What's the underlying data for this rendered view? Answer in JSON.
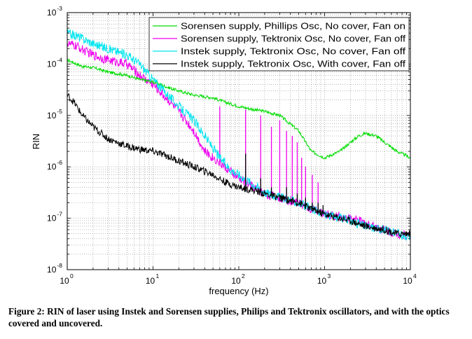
{
  "chart_data": {
    "type": "line",
    "xscale": "log",
    "yscale": "log",
    "xlim": [
      1,
      10000
    ],
    "ylim": [
      1e-08,
      0.001
    ],
    "xlabel": "frequency (Hz)",
    "ylabel": "RIN",
    "grid": "on (dotted, with minor log grid)",
    "legend_position": "top-right",
    "x_ticks": [
      {
        "value": 1,
        "base": "10",
        "exp": "0"
      },
      {
        "value": 10,
        "base": "10",
        "exp": "1"
      },
      {
        "value": 100,
        "base": "10",
        "exp": "2"
      },
      {
        "value": 1000,
        "base": "10",
        "exp": "3"
      },
      {
        "value": 10000,
        "base": "10",
        "exp": "4"
      }
    ],
    "y_ticks": [
      {
        "value": 1e-08,
        "base": "10",
        "exp": "-8"
      },
      {
        "value": 1e-07,
        "base": "10",
        "exp": "-7"
      },
      {
        "value": 1e-06,
        "base": "10",
        "exp": "-6"
      },
      {
        "value": 1e-05,
        "base": "10",
        "exp": "-5"
      },
      {
        "value": 0.0001,
        "base": "10",
        "exp": "-4"
      },
      {
        "value": 0.001,
        "base": "10",
        "exp": "-3"
      }
    ],
    "series": [
      {
        "name": "Sorensen supply, Phillips Osc, No cover, Fan on",
        "color": "#00dd00",
        "x": [
          1,
          1.5,
          2,
          3,
          5,
          7,
          10,
          15,
          20,
          30,
          50,
          70,
          100,
          150,
          200,
          300,
          500,
          700,
          1000,
          1500,
          2000,
          2500,
          3000,
          4000,
          5000,
          7000,
          10000
        ],
        "y": [
          0.00012,
          9e-05,
          8.5e-05,
          7e-05,
          6e-05,
          5e-05,
          4.5e-05,
          3.5e-05,
          3e-05,
          2.5e-05,
          2.2e-05,
          1.8e-05,
          1.5e-05,
          1.3e-05,
          1.2e-05,
          1e-05,
          5e-06,
          2e-06,
          1.5e-06,
          2e-06,
          3e-06,
          4e-06,
          4.5e-06,
          4e-06,
          3e-06,
          2e-06,
          1.5e-06
        ]
      },
      {
        "name": "Sorensen supply, Tektronix Osc, No cover, Fan off",
        "color": "#ee00ee",
        "x": [
          1,
          1.3,
          1.6,
          2,
          3,
          5,
          7,
          10,
          15,
          20,
          30,
          40,
          60,
          80,
          100,
          150,
          200,
          300,
          500,
          700,
          1000,
          2000,
          3000,
          5000,
          7000,
          10000
        ],
        "y": [
          0.00025,
          0.00022,
          0.00018,
          0.00015,
          0.00012,
          0.0001,
          6e-05,
          4e-05,
          2e-05,
          1.2e-05,
          5e-06,
          2e-06,
          1.2e-06,
          8e-07,
          6e-07,
          4e-07,
          3e-07,
          2.5e-07,
          2e-07,
          1.5e-07,
          1.2e-07,
          1e-07,
          8e-08,
          6e-08,
          5e-08,
          4.5e-08
        ],
        "spikes": [
          [
            60,
            1.5e-05
          ],
          [
            120,
            1.3e-05
          ],
          [
            180,
            1e-05
          ],
          [
            240,
            6e-06
          ],
          [
            300,
            8e-06
          ],
          [
            360,
            5e-06
          ],
          [
            420,
            4e-06
          ],
          [
            480,
            3e-06
          ],
          [
            540,
            1.5e-06
          ],
          [
            600,
            1e-06
          ],
          [
            720,
            7e-07
          ],
          [
            840,
            5e-07
          ]
        ]
      },
      {
        "name": "Instek supply, Tektronix Osc, No cover, Fan off",
        "color": "#00e5ee",
        "x": [
          1,
          1.3,
          1.6,
          2,
          3,
          5,
          7,
          10,
          15,
          20,
          30,
          40,
          60,
          80,
          100,
          150,
          200,
          300,
          500,
          700,
          1000,
          2000,
          3000,
          5000,
          7000,
          10000
        ],
        "y": [
          0.0004,
          0.00035,
          0.0003,
          0.00025,
          0.0002,
          0.00015,
          0.0001,
          5e-05,
          2.5e-05,
          1.5e-05,
          8e-06,
          4e-06,
          1.5e-06,
          9e-07,
          7e-07,
          4.5e-07,
          3.2e-07,
          2.6e-07,
          2e-07,
          1.5e-07,
          1.2e-07,
          9e-08,
          7e-08,
          6e-08,
          5e-08,
          4.5e-08
        ]
      },
      {
        "name": "Instek supply, Tektronix Osc, With cover, Fan off",
        "color": "#000000",
        "x": [
          1,
          1.2,
          1.5,
          2,
          3,
          5,
          7,
          10,
          15,
          20,
          30,
          50,
          70,
          100,
          150,
          200,
          300,
          500,
          700,
          1000,
          2000,
          3000,
          5000,
          7000,
          10000
        ],
        "y": [
          2.5e-05,
          1.8e-05,
          1e-05,
          6e-06,
          3.5e-06,
          2.5e-06,
          2.2e-06,
          2e-06,
          1.6e-06,
          1.3e-06,
          1e-06,
          7e-07,
          5e-07,
          4e-07,
          3.5e-07,
          3e-07,
          2.5e-07,
          2e-07,
          1.5e-07,
          1.2e-07,
          9e-08,
          7e-08,
          6e-08,
          5e-08,
          5e-08
        ],
        "spikes": [
          [
            120,
            1.8e-06
          ],
          [
            180,
            6e-07
          ],
          [
            240,
            4e-07
          ],
          [
            360,
            4e-07
          ],
          [
            480,
            3e-07
          ],
          [
            600,
            2.5e-07
          ],
          [
            720,
            2e-07
          ],
          [
            840,
            2e-07
          ],
          [
            960,
            1.8e-07
          ]
        ]
      }
    ]
  },
  "caption": "Figure 2: RIN of laser using Instek and Sorensen supplies, Philips and Tektronix oscillators, and with the optics covered and uncovered."
}
